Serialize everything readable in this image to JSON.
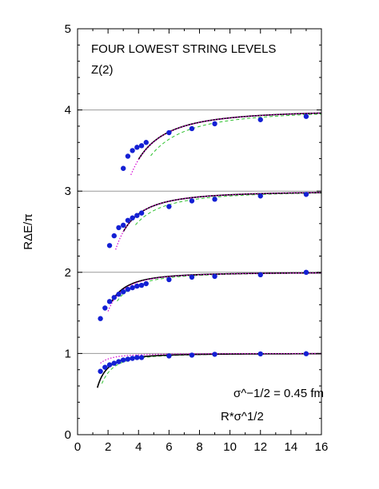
{
  "chart_data": {
    "type": "scatter",
    "title": "FOUR LOWEST STRING LEVELS",
    "subtitle": "Z(2)",
    "xlabel": "R*σ^1/2",
    "ylabel": "RΔE/π",
    "xlim": [
      0,
      16
    ],
    "ylim": [
      0,
      5
    ],
    "xticks": [
      "0",
      "2",
      "4",
      "6",
      "8",
      "10",
      "12",
      "14",
      "16"
    ],
    "yticks": [
      "0",
      "1",
      "2",
      "3",
      "4",
      "5"
    ],
    "reference_lines_y": [
      1,
      2,
      3,
      4
    ],
    "annotation": "σ^−1/2 = 0.45 fm",
    "colors": {
      "points": "#1420d4",
      "solid": "#000000",
      "dotted": "#d400d4",
      "dashed": "#2ec22e",
      "gridline": "#999999"
    },
    "series": [
      {
        "level": 1,
        "points": [
          [
            1.5,
            0.78
          ],
          [
            1.8,
            0.83
          ],
          [
            2.1,
            0.86
          ],
          [
            2.4,
            0.88
          ],
          [
            2.7,
            0.9
          ],
          [
            3.0,
            0.92
          ],
          [
            3.3,
            0.93
          ],
          [
            3.6,
            0.94
          ],
          [
            3.9,
            0.95
          ],
          [
            4.2,
            0.95
          ],
          [
            6.0,
            0.97
          ],
          [
            7.5,
            0.98
          ],
          [
            9.0,
            0.99
          ],
          [
            12.0,
            0.995
          ],
          [
            15.0,
            0.997
          ]
        ]
      },
      {
        "level": 2,
        "points": [
          [
            1.5,
            1.43
          ],
          [
            1.8,
            1.56
          ],
          [
            2.1,
            1.64
          ],
          [
            2.4,
            1.69
          ],
          [
            2.7,
            1.73
          ],
          [
            3.0,
            1.76
          ],
          [
            3.3,
            1.79
          ],
          [
            3.6,
            1.81
          ],
          [
            3.9,
            1.83
          ],
          [
            4.2,
            1.84
          ],
          [
            4.5,
            1.86
          ],
          [
            6.0,
            1.91
          ],
          [
            7.5,
            1.94
          ],
          [
            9.0,
            1.95
          ],
          [
            12.0,
            1.97
          ],
          [
            15.0,
            2.0
          ]
        ]
      },
      {
        "level": 3,
        "points": [
          [
            2.1,
            2.33
          ],
          [
            2.4,
            2.45
          ],
          [
            2.7,
            2.55
          ],
          [
            3.0,
            2.58
          ],
          [
            3.3,
            2.64
          ],
          [
            3.6,
            2.67
          ],
          [
            3.9,
            2.7
          ],
          [
            4.2,
            2.73
          ],
          [
            6.0,
            2.81
          ],
          [
            7.5,
            2.88
          ],
          [
            9.0,
            2.9
          ],
          [
            12.0,
            2.94
          ],
          [
            15.0,
            2.96
          ]
        ]
      },
      {
        "level": 4,
        "points": [
          [
            3.0,
            3.28
          ],
          [
            3.3,
            3.43
          ],
          [
            3.6,
            3.5
          ],
          [
            3.9,
            3.54
          ],
          [
            4.2,
            3.56
          ],
          [
            4.5,
            3.6
          ],
          [
            6.0,
            3.72
          ],
          [
            7.5,
            3.77
          ],
          [
            9.0,
            3.83
          ],
          [
            12.0,
            3.88
          ],
          [
            15.0,
            3.92
          ]
        ]
      }
    ]
  }
}
